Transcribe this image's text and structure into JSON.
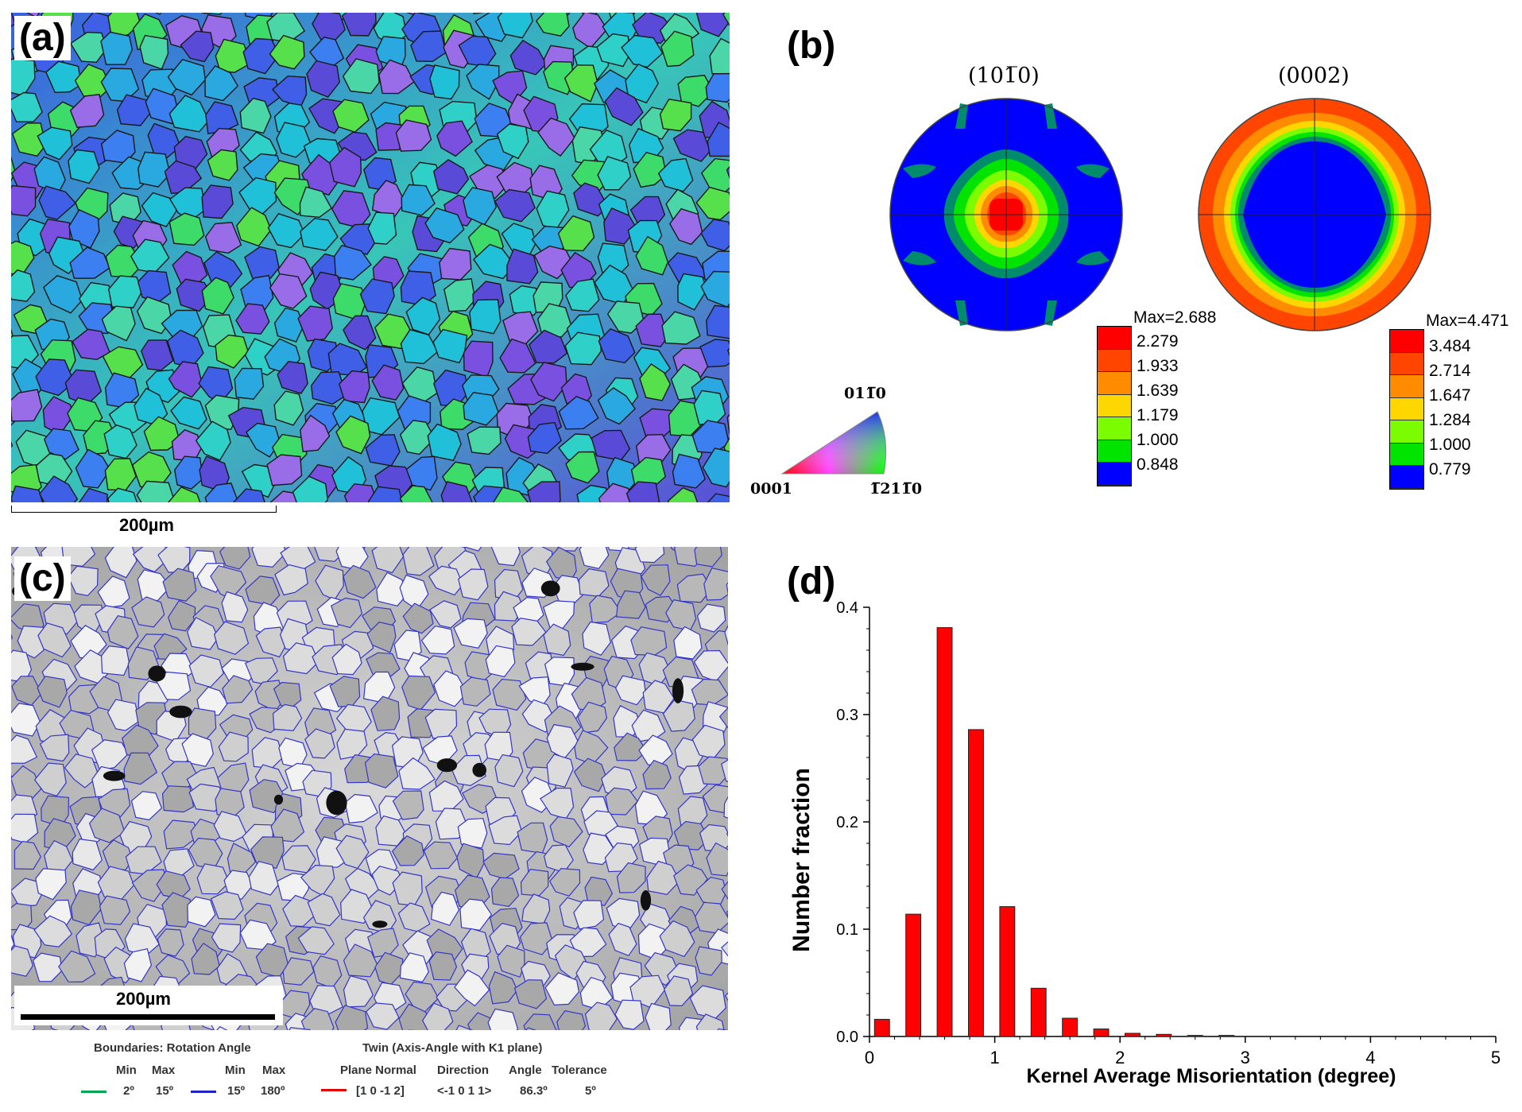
{
  "panels": {
    "a": {
      "label": "(a)",
      "scalebar": "200µm"
    },
    "b": {
      "label": "(b)",
      "pf1": {
        "title": "(101̅0)",
        "max_label": "Max=2.688",
        "levels": [
          "2.279",
          "1.933",
          "1.639",
          "1.179",
          "1.000",
          "0.848"
        ]
      },
      "pf2": {
        "title": "(0002)",
        "max_label": "Max=4.471",
        "levels": [
          "3.484",
          "2.714",
          "1.647",
          "1.284",
          "1.000",
          "0.779"
        ]
      },
      "colorbar_colors": [
        "#ff0000",
        "#ff4500",
        "#ff8c00",
        "#ffd700",
        "#7cfc00",
        "#00e400",
        "#008b6b",
        "#0000ff"
      ],
      "ipf": {
        "top": "011̅0",
        "left": "0001",
        "right": "1̅211̅0"
      }
    },
    "c": {
      "label": "(c)",
      "scalebar": "200µm",
      "legend": {
        "boundaries_title": "Boundaries: Rotation Angle",
        "min_label": "Min",
        "max_label": "Max",
        "green_min": "2º",
        "green_max": "15º",
        "blue_min": "15º",
        "blue_max": "180º",
        "green_color": "#00a651",
        "blue_color": "#2222cc",
        "red_color": "#e00000",
        "twin_title": "Twin (Axis-Angle with K1 plane)",
        "plane_normal": "Plane Normal",
        "direction": "Direction",
        "angle": "Angle",
        "tolerance": "Tolerance",
        "twin_plane": "[1 0 -1 2]",
        "twin_dir": "<-1 0 1 1>",
        "twin_angle": "86.3º",
        "twin_tol": "5º"
      }
    },
    "d": {
      "label": "(d)"
    }
  },
  "chart_data": {
    "type": "bar",
    "x": [
      0.1,
      0.35,
      0.6,
      0.85,
      1.1,
      1.35,
      1.6,
      1.85,
      2.1,
      2.35,
      2.6,
      2.85
    ],
    "values": [
      0.016,
      0.114,
      0.381,
      0.286,
      0.121,
      0.045,
      0.017,
      0.007,
      0.003,
      0.002,
      0.001,
      0.001
    ],
    "bar_width": 0.12,
    "xlim": [
      0,
      5
    ],
    "ylim": [
      0,
      0.4
    ],
    "xticks": [
      "0",
      "1",
      "2",
      "3",
      "4",
      "5"
    ],
    "yticks": [
      "0.0",
      "0.1",
      "0.2",
      "0.3",
      "0.4"
    ],
    "xlabel": "Kernel Average Misorientation (degree)",
    "ylabel": "Number fraction",
    "bar_color": "#ff0000"
  }
}
